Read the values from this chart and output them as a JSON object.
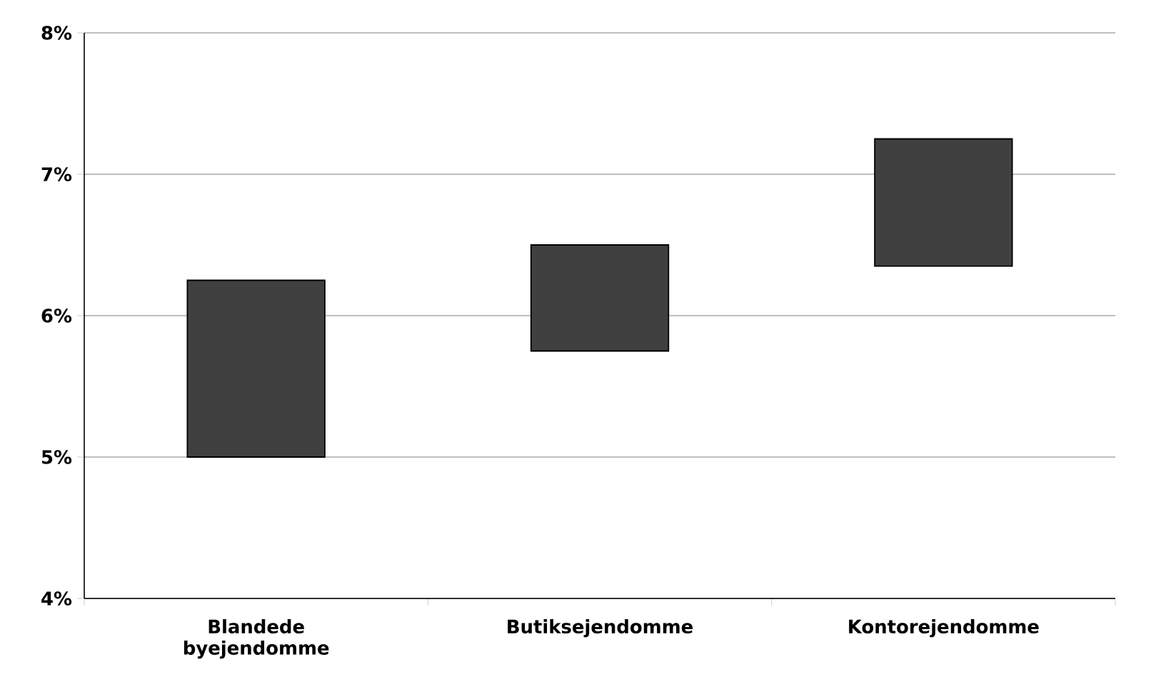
{
  "chart_data": {
    "type": "bar",
    "categories": [
      "Blandede byejendomme",
      "Butiksejendomme",
      "Kontorejendomme"
    ],
    "base": [
      5.0,
      5.75,
      6.35
    ],
    "values": [
      1.25,
      0.75,
      0.9
    ],
    "color": "#404040",
    "ylim": [
      4,
      8
    ],
    "yticks": [
      {
        "value": 4,
        "label": "4%"
      },
      {
        "value": 5,
        "label": "5%"
      },
      {
        "value": 6,
        "label": "6%"
      },
      {
        "value": 7,
        "label": "7%"
      },
      {
        "value": 8,
        "label": "8%"
      }
    ],
    "grid": "y"
  }
}
